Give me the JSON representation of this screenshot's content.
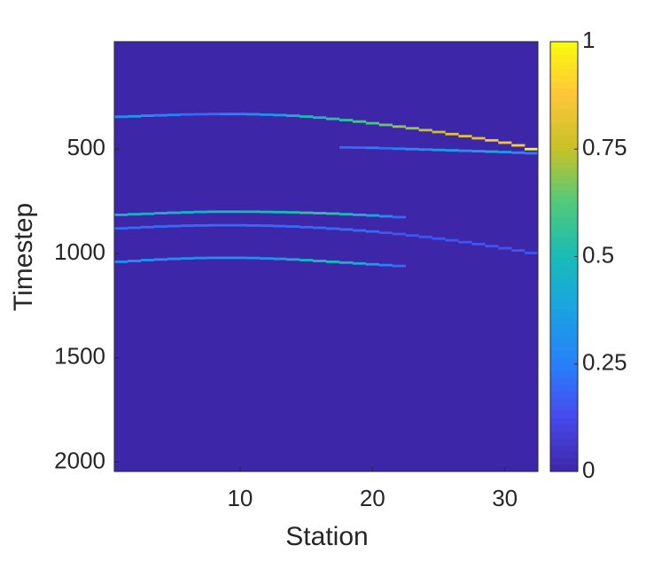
{
  "chart_data": {
    "type": "heatmap",
    "xlabel": "Station",
    "ylabel": "Timestep",
    "xlim": [
      0.5,
      32.5
    ],
    "ylim": [
      -15,
      2045
    ],
    "y_reversed": true,
    "xticks": [
      10,
      20,
      30
    ],
    "yticks": [
      500,
      1000,
      1500,
      2000
    ],
    "clim": [
      0,
      1
    ],
    "cticks": [
      0,
      0.25,
      0.5,
      0.75,
      1
    ],
    "colormap": "parula",
    "x": [
      1,
      2,
      3,
      4,
      5,
      6,
      7,
      8,
      9,
      10,
      11,
      12,
      13,
      14,
      15,
      16,
      17,
      18,
      19,
      20,
      21,
      22,
      23,
      24,
      25,
      26,
      27,
      28,
      29,
      30,
      31,
      32,
      18,
      19,
      20,
      21,
      22,
      23,
      24,
      25,
      26,
      27,
      28,
      29,
      30,
      31,
      32,
      1,
      2,
      3,
      4,
      5,
      6,
      7,
      8,
      9,
      10,
      11,
      12,
      13,
      14,
      15,
      16,
      17,
      18,
      19,
      20,
      21,
      22,
      1,
      2,
      3,
      4,
      5,
      6,
      7,
      8,
      9,
      10,
      11,
      12,
      13,
      14,
      15,
      16,
      17,
      18,
      19,
      20,
      21,
      22,
      23,
      24,
      25,
      26,
      27,
      28,
      29,
      30,
      31,
      32,
      1,
      2,
      3,
      4,
      5,
      6,
      7,
      8,
      9,
      10,
      11,
      12,
      13,
      14,
      15,
      16,
      17,
      18,
      19,
      20,
      21,
      22
    ],
    "y": [
      345,
      343,
      340,
      338,
      336,
      334,
      333,
      332,
      332,
      332,
      333,
      335,
      337,
      340,
      344,
      349,
      355,
      361,
      368,
      376,
      384,
      392,
      400,
      409,
      418,
      428,
      438,
      448,
      458,
      469,
      482,
      500,
      492,
      493,
      494,
      496,
      498,
      500,
      502,
      504,
      506,
      508,
      510,
      512,
      514,
      517,
      520,
      815,
      812,
      810,
      807,
      805,
      803,
      801,
      800,
      800,
      800,
      800,
      801,
      802,
      803,
      805,
      807,
      809,
      812,
      815,
      818,
      822,
      826,
      880,
      877,
      874,
      871,
      869,
      867,
      866,
      865,
      865,
      865,
      866,
      867,
      869,
      871,
      874,
      877,
      881,
      885,
      890,
      895,
      901,
      907,
      914,
      921,
      929,
      937,
      946,
      955,
      965,
      975,
      986,
      998,
      1040,
      1036,
      1032,
      1029,
      1026,
      1024,
      1022,
      1021,
      1021,
      1021,
      1022,
      1024,
      1026,
      1029,
      1032,
      1036,
      1040,
      1044,
      1048,
      1052,
      1056,
      1060
    ],
    "values": [
      0.3,
      0.35,
      0.3,
      0.25,
      0.25,
      0.2,
      0.2,
      0.2,
      0.25,
      0.25,
      0.3,
      0.3,
      0.35,
      0.45,
      0.5,
      0.5,
      0.55,
      0.55,
      0.6,
      0.6,
      0.65,
      0.7,
      0.7,
      0.75,
      0.75,
      0.8,
      0.8,
      0.8,
      0.85,
      0.85,
      0.9,
      1,
      0.2,
      0.2,
      0.25,
      0.2,
      0.25,
      0.3,
      0.3,
      0.35,
      0.35,
      0.3,
      0.35,
      0.4,
      0.35,
      0.3,
      0.25,
      0.45,
      0.45,
      0.45,
      0.45,
      0.45,
      0.45,
      0.45,
      0.5,
      0.5,
      0.5,
      0.5,
      0.5,
      0.5,
      0.5,
      0.55,
      0.55,
      0.55,
      0.5,
      0.45,
      0.4,
      0.3,
      0.2,
      0.2,
      0.2,
      0.2,
      0.2,
      0.2,
      0.2,
      0.2,
      0.2,
      0.2,
      0.2,
      0.2,
      0.2,
      0.2,
      0.2,
      0.2,
      0.2,
      0.2,
      0.2,
      0.2,
      0.2,
      0.15,
      0.15,
      0.15,
      0.15,
      0.15,
      0.15,
      0.15,
      0.15,
      0.15,
      0.15,
      0.15,
      0.15,
      0.3,
      0.3,
      0.3,
      0.3,
      0.3,
      0.3,
      0.3,
      0.3,
      0.3,
      0.3,
      0.3,
      0.3,
      0.35,
      0.4,
      0.45,
      0.5,
      0.5,
      0.45,
      0.4,
      0.35,
      0.25,
      0.2
    ]
  }
}
